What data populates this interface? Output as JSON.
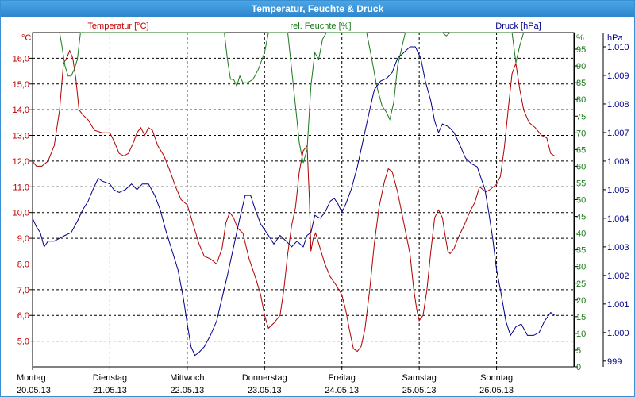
{
  "chart_data": {
    "type": "line",
    "title": "Temperatur, Feuchte & Druck",
    "axes": {
      "temperature": {
        "label": "Temperatur [°C]",
        "unit": "°C",
        "range": [
          4.0,
          17.0
        ],
        "ticks": [
          "16,0",
          "15,0",
          "14,0",
          "13,0",
          "12,0",
          "11,0",
          "10,0",
          "9,0",
          "8,0",
          "7,0",
          "6,0",
          "5,0"
        ],
        "color": "#c00000"
      },
      "humidity": {
        "label": "rel. Feuchte [%]",
        "unit": "%",
        "range": [
          0,
          100
        ],
        "ticks": [
          "95",
          "90",
          "85",
          "80",
          "75",
          "70",
          "65",
          "60",
          "55",
          "50",
          "45",
          "40",
          "35",
          "30",
          "25",
          "20",
          "15",
          "10",
          "5",
          "0"
        ],
        "color": "#1a7a1a"
      },
      "pressure": {
        "label": "Druck [hPa]",
        "unit": "hPa",
        "range": [
          998.8,
          1010.5
        ],
        "ticks": [
          "1.010",
          "1.009",
          "1.008",
          "1.007",
          "1.006",
          "1.005",
          "1.004",
          "1.003",
          "1.002",
          "1.001",
          "1.000",
          "999"
        ],
        "color": "#00008b"
      }
    },
    "x_range_days": [
      0,
      7
    ],
    "x_ticks": [
      {
        "day": "Montag",
        "date": "20.05.13"
      },
      {
        "day": "Dienstag",
        "date": "21.05.13"
      },
      {
        "day": "Mittwoch",
        "date": "22.05.13"
      },
      {
        "day": "Donnerstag",
        "date": "23.05.13"
      },
      {
        "day": "Freitag",
        "date": "24.05.13"
      },
      {
        "day": "Samstag",
        "date": "25.05.13"
      },
      {
        "day": "Sonntag",
        "date": "26.05.13"
      }
    ],
    "grid": true,
    "series": [
      {
        "name": "Temperatur [°C]",
        "axis": "temperature",
        "color": "#b00000",
        "points": [
          [
            0,
            12.0
          ],
          [
            0.05,
            11.8
          ],
          [
            0.12,
            11.8
          ],
          [
            0.2,
            12.0
          ],
          [
            0.28,
            12.6
          ],
          [
            0.35,
            14.0
          ],
          [
            0.4,
            15.8
          ],
          [
            0.44,
            16.0
          ],
          [
            0.48,
            16.3
          ],
          [
            0.52,
            16.0
          ],
          [
            0.56,
            15.2
          ],
          [
            0.6,
            14.0
          ],
          [
            0.65,
            13.8
          ],
          [
            0.72,
            13.6
          ],
          [
            0.8,
            13.2
          ],
          [
            0.9,
            13.1
          ],
          [
            1.0,
            13.1
          ],
          [
            1.05,
            12.8
          ],
          [
            1.12,
            12.3
          ],
          [
            1.18,
            12.2
          ],
          [
            1.24,
            12.3
          ],
          [
            1.3,
            12.7
          ],
          [
            1.35,
            13.1
          ],
          [
            1.4,
            13.3
          ],
          [
            1.45,
            13.0
          ],
          [
            1.5,
            13.3
          ],
          [
            1.55,
            13.2
          ],
          [
            1.62,
            12.6
          ],
          [
            1.7,
            12.2
          ],
          [
            1.78,
            11.6
          ],
          [
            1.85,
            11.0
          ],
          [
            1.92,
            10.5
          ],
          [
            2.0,
            10.3
          ],
          [
            2.08,
            9.5
          ],
          [
            2.15,
            8.8
          ],
          [
            2.22,
            8.3
          ],
          [
            2.3,
            8.2
          ],
          [
            2.38,
            8.0
          ],
          [
            2.45,
            8.6
          ],
          [
            2.5,
            9.6
          ],
          [
            2.55,
            10.0
          ],
          [
            2.6,
            9.8
          ],
          [
            2.65,
            9.4
          ],
          [
            2.72,
            9.2
          ],
          [
            2.8,
            8.2
          ],
          [
            2.88,
            7.5
          ],
          [
            2.95,
            6.8
          ],
          [
            3.0,
            6.0
          ],
          [
            3.05,
            5.5
          ],
          [
            3.12,
            5.7
          ],
          [
            3.2,
            6.0
          ],
          [
            3.25,
            7.0
          ],
          [
            3.3,
            8.4
          ],
          [
            3.35,
            9.5
          ],
          [
            3.4,
            10.2
          ],
          [
            3.45,
            11.6
          ],
          [
            3.5,
            12.4
          ],
          [
            3.55,
            12.6
          ],
          [
            3.58,
            10.5
          ],
          [
            3.6,
            8.5
          ],
          [
            3.63,
            9.0
          ],
          [
            3.66,
            9.2
          ],
          [
            3.7,
            8.8
          ],
          [
            3.78,
            8.0
          ],
          [
            3.85,
            7.5
          ],
          [
            3.92,
            7.2
          ],
          [
            4.0,
            6.8
          ],
          [
            4.05,
            6.2
          ],
          [
            4.1,
            5.4
          ],
          [
            4.15,
            4.7
          ],
          [
            4.2,
            4.6
          ],
          [
            4.25,
            4.8
          ],
          [
            4.3,
            5.5
          ],
          [
            4.36,
            7.0
          ],
          [
            4.42,
            8.8
          ],
          [
            4.48,
            10.2
          ],
          [
            4.55,
            11.2
          ],
          [
            4.6,
            11.7
          ],
          [
            4.65,
            11.6
          ],
          [
            4.72,
            10.8
          ],
          [
            4.8,
            9.6
          ],
          [
            4.88,
            8.4
          ],
          [
            4.93,
            7.0
          ],
          [
            4.97,
            6.2
          ],
          [
            5.0,
            5.8
          ],
          [
            5.05,
            6.0
          ],
          [
            5.1,
            7.0
          ],
          [
            5.15,
            8.5
          ],
          [
            5.2,
            9.8
          ],
          [
            5.25,
            10.1
          ],
          [
            5.3,
            9.8
          ],
          [
            5.33,
            9.2
          ],
          [
            5.37,
            8.5
          ],
          [
            5.4,
            8.4
          ],
          [
            5.45,
            8.6
          ],
          [
            5.5,
            9.0
          ],
          [
            5.58,
            9.5
          ],
          [
            5.65,
            10.0
          ],
          [
            5.72,
            10.4
          ],
          [
            5.78,
            11.0
          ],
          [
            5.82,
            10.9
          ],
          [
            5.86,
            10.8
          ],
          [
            5.92,
            10.9
          ],
          [
            5.96,
            11.0
          ],
          [
            6.0,
            11.1
          ],
          [
            6.05,
            11.4
          ],
          [
            6.1,
            12.5
          ],
          [
            6.15,
            14.0
          ],
          [
            6.2,
            15.4
          ],
          [
            6.25,
            15.8
          ],
          [
            6.3,
            14.8
          ],
          [
            6.35,
            14.0
          ],
          [
            6.42,
            13.5
          ],
          [
            6.5,
            13.3
          ],
          [
            6.58,
            13.0
          ],
          [
            6.65,
            12.9
          ],
          [
            6.7,
            12.3
          ],
          [
            6.75,
            12.2
          ],
          [
            6.78,
            12.2
          ]
        ]
      },
      {
        "name": "rel. Feuchte [%]",
        "axis": "humidity",
        "color": "#1a7a1a",
        "points": [
          [
            0.35,
            100
          ],
          [
            0.38,
            96
          ],
          [
            0.42,
            90
          ],
          [
            0.46,
            87
          ],
          [
            0.5,
            87
          ],
          [
            0.54,
            89
          ],
          [
            0.58,
            92
          ],
          [
            0.62,
            100
          ],
          [
            2.48,
            100
          ],
          [
            2.52,
            92
          ],
          [
            2.56,
            86
          ],
          [
            2.6,
            86
          ],
          [
            2.64,
            84
          ],
          [
            2.68,
            87
          ],
          [
            2.72,
            85
          ],
          [
            2.78,
            85
          ],
          [
            2.85,
            86
          ],
          [
            2.92,
            89
          ],
          [
            3.0,
            94
          ],
          [
            3.05,
            100
          ],
          [
            3.3,
            100
          ],
          [
            3.35,
            89
          ],
          [
            3.4,
            78
          ],
          [
            3.45,
            67
          ],
          [
            3.5,
            61
          ],
          [
            3.55,
            65
          ],
          [
            3.6,
            84
          ],
          [
            3.65,
            94
          ],
          [
            3.7,
            92
          ],
          [
            3.75,
            98
          ],
          [
            3.8,
            100
          ],
          [
            4.32,
            100
          ],
          [
            4.38,
            93
          ],
          [
            4.45,
            84
          ],
          [
            4.52,
            78
          ],
          [
            4.58,
            76
          ],
          [
            4.62,
            74
          ],
          [
            4.67,
            79
          ],
          [
            4.72,
            90
          ],
          [
            4.78,
            96
          ],
          [
            4.82,
            100
          ],
          [
            5.3,
            100
          ],
          [
            5.35,
            99
          ],
          [
            5.4,
            100
          ],
          [
            6.2,
            100
          ],
          [
            6.25,
            91
          ],
          [
            6.3,
            96
          ],
          [
            6.35,
            100
          ]
        ]
      },
      {
        "name": "Druck [hPa]",
        "axis": "pressure",
        "color": "#00008b",
        "points": [
          [
            0,
            1004.0
          ],
          [
            0.05,
            1003.7
          ],
          [
            0.1,
            1003.5
          ],
          [
            0.15,
            1003.0
          ],
          [
            0.2,
            1003.2
          ],
          [
            0.28,
            1003.2
          ],
          [
            0.35,
            1003.3
          ],
          [
            0.42,
            1003.4
          ],
          [
            0.5,
            1003.5
          ],
          [
            0.58,
            1003.9
          ],
          [
            0.65,
            1004.3
          ],
          [
            0.72,
            1004.6
          ],
          [
            0.78,
            1005.0
          ],
          [
            0.85,
            1005.4
          ],
          [
            0.9,
            1005.3
          ],
          [
            1.0,
            1005.2
          ],
          [
            1.05,
            1005.0
          ],
          [
            1.12,
            1004.9
          ],
          [
            1.2,
            1005.0
          ],
          [
            1.28,
            1005.2
          ],
          [
            1.35,
            1005.0
          ],
          [
            1.42,
            1005.2
          ],
          [
            1.5,
            1005.2
          ],
          [
            1.58,
            1004.8
          ],
          [
            1.65,
            1004.3
          ],
          [
            1.72,
            1003.6
          ],
          [
            1.8,
            1002.9
          ],
          [
            1.88,
            1002.2
          ],
          [
            1.95,
            1001.2
          ],
          [
            2.0,
            1000.3
          ],
          [
            2.05,
            999.5
          ],
          [
            2.1,
            999.2
          ],
          [
            2.15,
            999.3
          ],
          [
            2.22,
            999.5
          ],
          [
            2.3,
            999.9
          ],
          [
            2.38,
            1000.4
          ],
          [
            2.45,
            1001.2
          ],
          [
            2.52,
            1002.0
          ],
          [
            2.6,
            1003.0
          ],
          [
            2.68,
            1004.0
          ],
          [
            2.75,
            1004.8
          ],
          [
            2.82,
            1004.8
          ],
          [
            2.88,
            1004.3
          ],
          [
            2.95,
            1003.8
          ],
          [
            3.05,
            1003.4
          ],
          [
            3.12,
            1003.1
          ],
          [
            3.2,
            1003.4
          ],
          [
            3.28,
            1003.2
          ],
          [
            3.35,
            1003.0
          ],
          [
            3.42,
            1003.2
          ],
          [
            3.5,
            1003.0
          ],
          [
            3.55,
            1003.4
          ],
          [
            3.6,
            1003.5
          ],
          [
            3.65,
            1004.1
          ],
          [
            3.72,
            1004.0
          ],
          [
            3.78,
            1004.2
          ],
          [
            3.85,
            1004.6
          ],
          [
            3.9,
            1004.7
          ],
          [
            3.95,
            1004.5
          ],
          [
            4.0,
            1004.2
          ],
          [
            4.05,
            1004.5
          ],
          [
            4.12,
            1005.0
          ],
          [
            4.2,
            1005.8
          ],
          [
            4.28,
            1006.8
          ],
          [
            4.36,
            1007.8
          ],
          [
            4.42,
            1008.5
          ],
          [
            4.5,
            1008.8
          ],
          [
            4.58,
            1008.9
          ],
          [
            4.65,
            1009.1
          ],
          [
            4.72,
            1009.6
          ],
          [
            4.8,
            1009.8
          ],
          [
            4.88,
            1010.0
          ],
          [
            4.95,
            1010.0
          ],
          [
            5.02,
            1009.6
          ],
          [
            5.08,
            1008.8
          ],
          [
            5.15,
            1008.1
          ],
          [
            5.2,
            1007.4
          ],
          [
            5.25,
            1007.0
          ],
          [
            5.3,
            1007.3
          ],
          [
            5.38,
            1007.2
          ],
          [
            5.45,
            1007.0
          ],
          [
            5.52,
            1006.6
          ],
          [
            5.6,
            1006.1
          ],
          [
            5.68,
            1005.9
          ],
          [
            5.75,
            1005.8
          ],
          [
            5.8,
            1005.4
          ],
          [
            5.85,
            1005.0
          ],
          [
            5.9,
            1004.2
          ],
          [
            5.95,
            1003.3
          ],
          [
            6.0,
            1002.2
          ],
          [
            6.05,
            1001.5
          ],
          [
            6.12,
            1000.4
          ],
          [
            6.18,
            999.9
          ],
          [
            6.25,
            1000.2
          ],
          [
            6.32,
            1000.3
          ],
          [
            6.4,
            999.9
          ],
          [
            6.48,
            999.9
          ],
          [
            6.55,
            1000.0
          ],
          [
            6.62,
            1000.4
          ],
          [
            6.7,
            1000.7
          ],
          [
            6.75,
            1000.6
          ]
        ]
      }
    ]
  }
}
